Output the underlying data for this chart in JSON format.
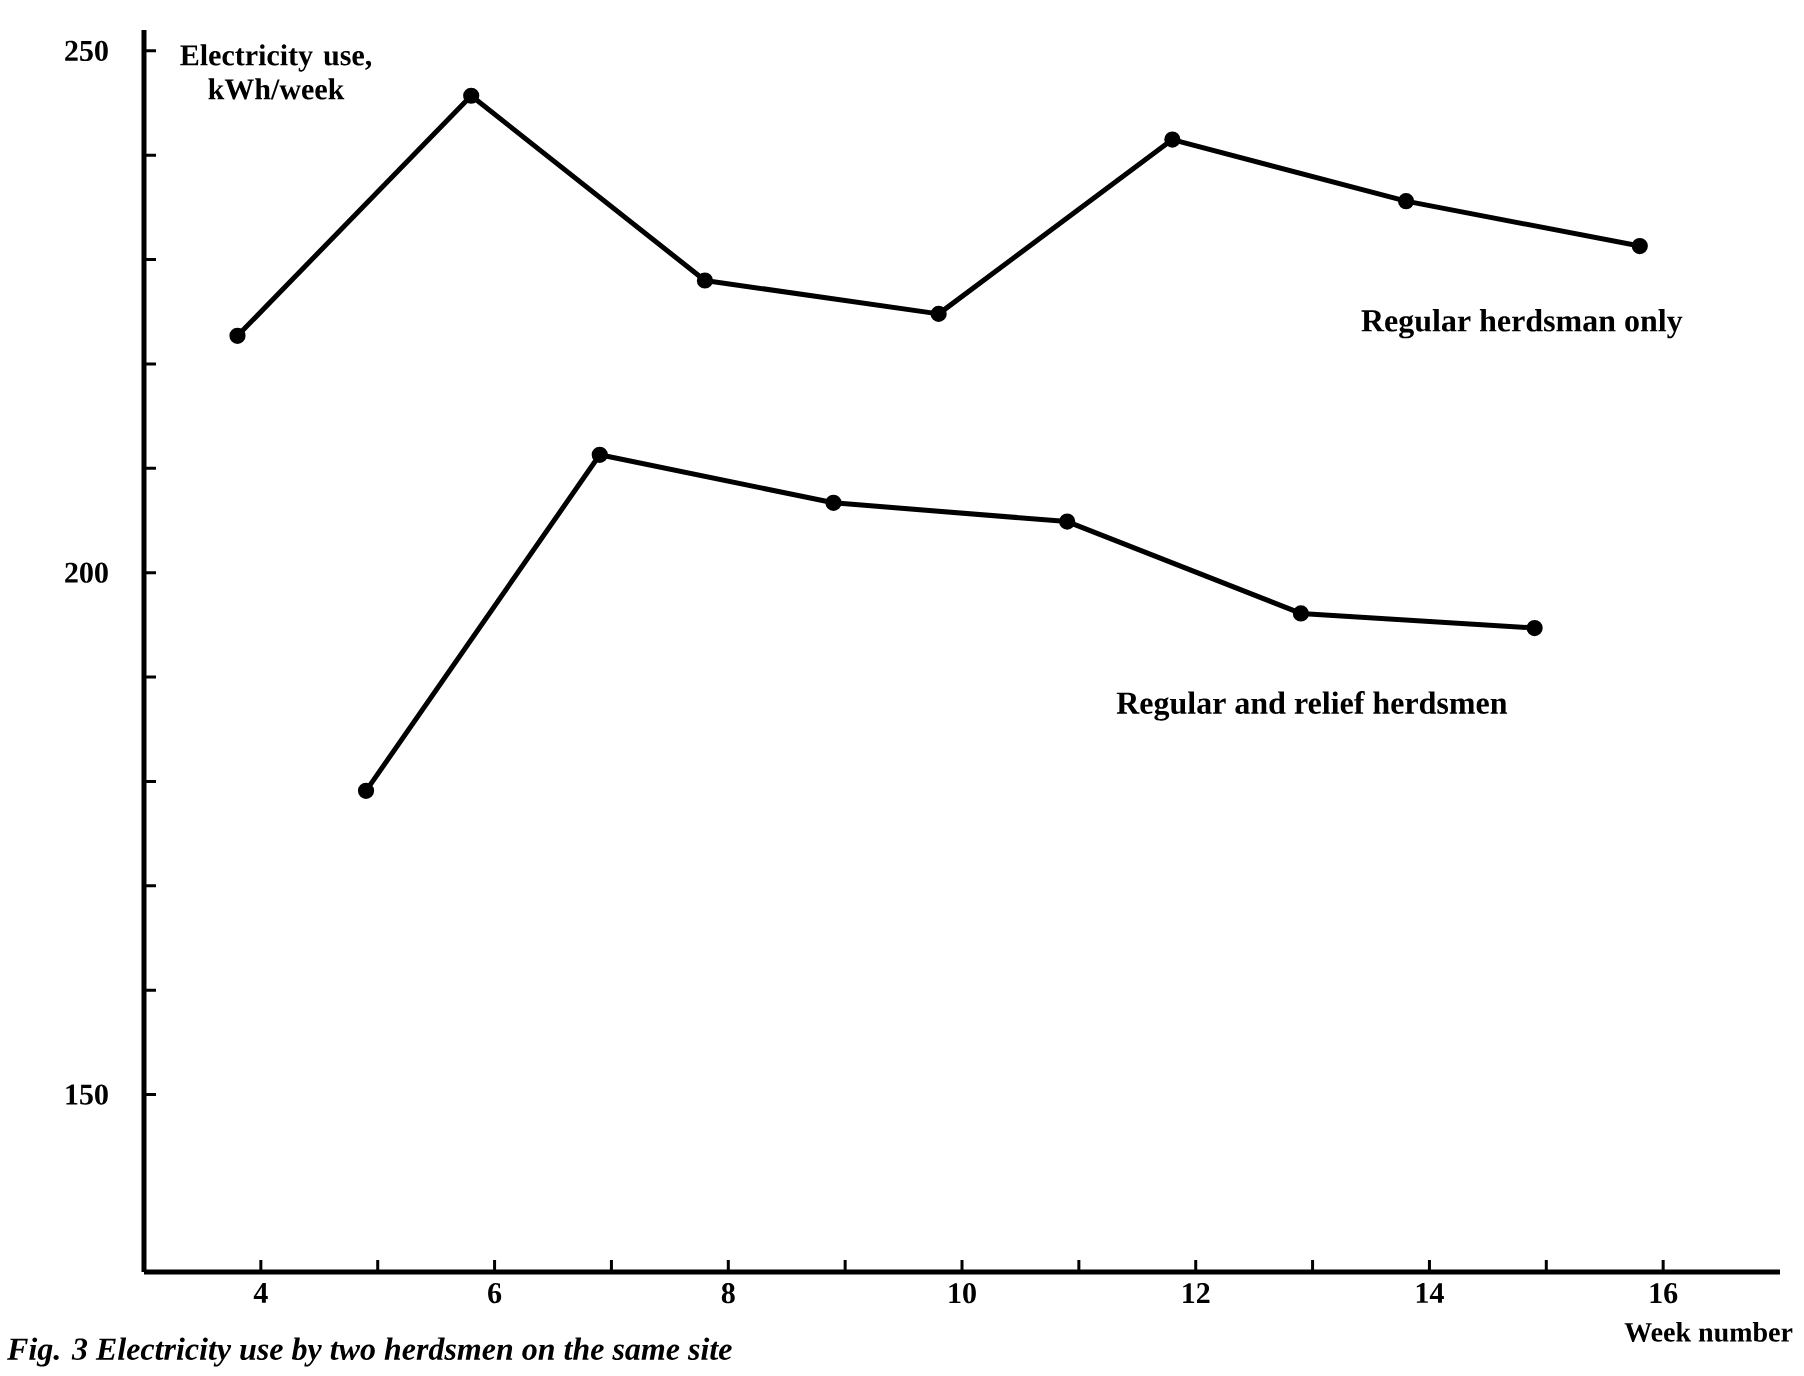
{
  "chart_data": {
    "type": "line",
    "ylabel": "Electricity use, kWh/week",
    "xlabel": "Week number",
    "annotations": [
      "Fig. 3 Electricity use by two herdsmen on the same site"
    ],
    "xlim": [
      3,
      17
    ],
    "ylim": [
      133,
      252
    ],
    "xticks": [
      4,
      {
        "value": 5,
        "label": null
      },
      6,
      {
        "value": 7,
        "label": null
      },
      8,
      {
        "value": 9,
        "label": null
      },
      10,
      {
        "value": 11,
        "label": null
      },
      12,
      {
        "value": 13,
        "label": null
      },
      14,
      {
        "value": 15,
        "label": null
      },
      16
    ],
    "yticks": [
      150,
      {
        "value": 160,
        "label": null
      },
      {
        "value": 170,
        "label": null
      },
      {
        "value": 180,
        "label": null
      },
      {
        "value": 190,
        "label": null
      },
      200,
      {
        "value": 210,
        "label": null
      },
      {
        "value": 220,
        "label": null
      },
      {
        "value": 230,
        "label": null
      },
      {
        "value": 240,
        "label": null
      },
      250
    ],
    "grid": false,
    "legend": false,
    "marker": "circle",
    "line_style": "solid",
    "series": [
      {
        "name": "Regular herdsman only",
        "color": "#000000",
        "x": [
          3.8,
          5.8,
          7.8,
          9.8,
          11.8,
          13.8,
          15.8
        ],
        "values": [
          222.7,
          245.7,
          228,
          224.8,
          241.5,
          235.6,
          231.3
        ]
      },
      {
        "name": "Regular and relief herdsmen",
        "color": "#000000",
        "x": [
          4.9,
          6.9,
          8.9,
          10.9,
          12.9,
          14.9
        ],
        "values": [
          179.1,
          211.3,
          206.7,
          204.9,
          196.1,
          194.7
        ]
      }
    ]
  }
}
